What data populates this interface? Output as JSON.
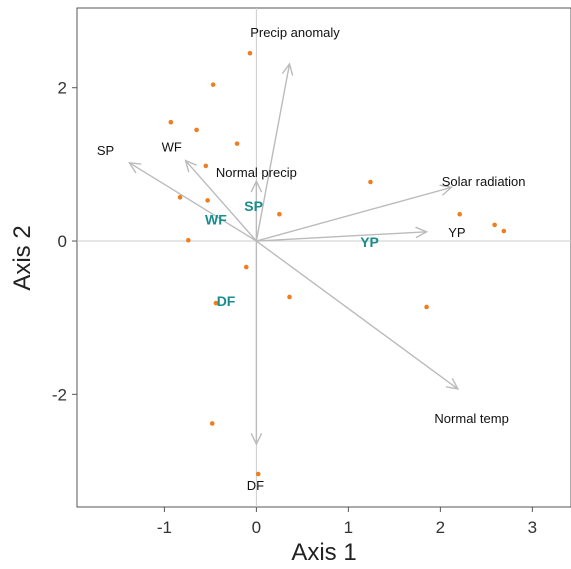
{
  "chart_data": {
    "type": "scatter",
    "title": "",
    "xlabel": "Axis 1",
    "ylabel": "Axis 2",
    "xlim": [
      -1.95,
      3.42
    ],
    "ylim": [
      -3.47,
      3.04
    ],
    "xticks": [
      -1,
      0,
      1,
      2,
      3
    ],
    "yticks": [
      -2,
      0,
      2
    ],
    "grid": false,
    "reference_lines": {
      "x": 0,
      "y": 0
    },
    "colors": {
      "points": "#f07d1e",
      "arrows": "#bbbbbb",
      "site_labels": "#1a8c8c",
      "vector_labels": "#111111",
      "frame": "#555555"
    },
    "points": [
      {
        "x": -0.07,
        "y": 2.45
      },
      {
        "x": -0.47,
        "y": 2.04
      },
      {
        "x": -0.93,
        "y": 1.55
      },
      {
        "x": -0.65,
        "y": 1.45
      },
      {
        "x": -0.21,
        "y": 1.27
      },
      {
        "x": -0.55,
        "y": 0.98
      },
      {
        "x": -0.83,
        "y": 0.57
      },
      {
        "x": -0.53,
        "y": 0.53
      },
      {
        "x": -0.74,
        "y": 0.01
      },
      {
        "x": 0.25,
        "y": 0.35
      },
      {
        "x": 1.24,
        "y": 0.77
      },
      {
        "x": 2.21,
        "y": 0.35
      },
      {
        "x": 2.59,
        "y": 0.21
      },
      {
        "x": 2.69,
        "y": 0.13
      },
      {
        "x": -0.11,
        "y": -0.34
      },
      {
        "x": 0.36,
        "y": -0.73
      },
      {
        "x": -0.44,
        "y": -0.81
      },
      {
        "x": 1.85,
        "y": -0.86
      },
      {
        "x": -0.48,
        "y": -2.38
      },
      {
        "x": 0.02,
        "y": -3.04
      }
    ],
    "vectors": [
      {
        "label": "Precip anomaly",
        "x": 0.36,
        "y": 2.31,
        "label_x": 0.42,
        "label_y": 2.73
      },
      {
        "label": "SP",
        "x": -1.38,
        "y": 1.02,
        "label_x": -1.64,
        "label_y": 1.19
      },
      {
        "label": "WF",
        "x": -0.77,
        "y": 1.05,
        "label_x": -0.92,
        "label_y": 1.23
      },
      {
        "label": "Normal precip",
        "x": 0.0,
        "y": 0.78,
        "label_x": 0.0,
        "label_y": 0.9
      },
      {
        "label": "Solar radiation",
        "x": 2.12,
        "y": 0.7,
        "label_x": 2.47,
        "label_y": 0.78
      },
      {
        "label": "YP",
        "x": 1.85,
        "y": 0.12,
        "label_x": 2.18,
        "label_y": 0.12
      },
      {
        "label": "Normal temp",
        "x": 2.19,
        "y": -1.93,
        "label_x": 2.34,
        "label_y": -2.31
      },
      {
        "label": "DF",
        "x": 0.0,
        "y": -2.65,
        "label_x": -0.01,
        "label_y": -3.18
      }
    ],
    "site_labels": [
      {
        "label": "SP",
        "x": -0.03,
        "y": 0.46
      },
      {
        "label": "WF",
        "x": -0.44,
        "y": 0.28
      },
      {
        "label": "YP",
        "x": 1.23,
        "y": -0.01
      },
      {
        "label": "DF",
        "x": -0.33,
        "y": -0.78
      }
    ]
  }
}
